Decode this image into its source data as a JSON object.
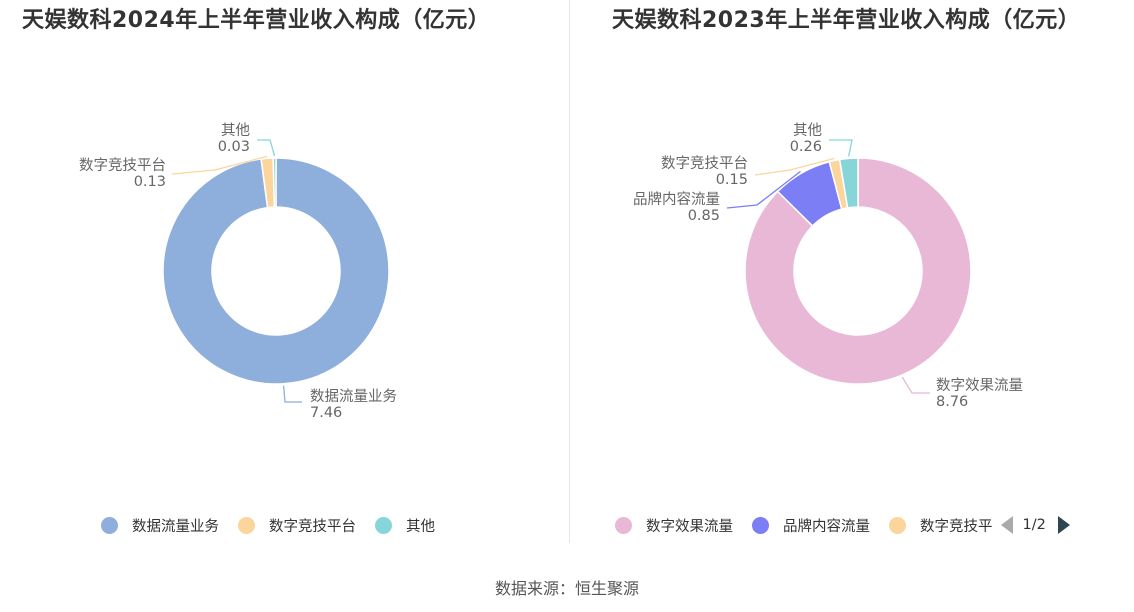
{
  "chart_data": [
    {
      "type": "pie",
      "title": "天娱数科2024年上半年营业收入构成（亿元）",
      "slices": [
        {
          "name": "数据流量业务",
          "value": 7.46,
          "value_label": "7.46",
          "color": "#8eaedb"
        },
        {
          "name": "数字竞技平台",
          "value": 0.13,
          "value_label": "0.13",
          "color": "#fcd59c"
        },
        {
          "name": "其他",
          "value": 0.03,
          "value_label": "0.03",
          "color": "#86d5d9"
        }
      ],
      "legend": [
        "数据流量业务",
        "数字竞技平台",
        "其他"
      ],
      "legend_placement": "bottom"
    },
    {
      "type": "pie",
      "title": "天娱数科2023年上半年营业收入构成（亿元）",
      "slices": [
        {
          "name": "数字效果流量",
          "value": 8.76,
          "value_label": "8.76",
          "color": "#e8b8d6"
        },
        {
          "name": "品牌内容流量",
          "value": 0.85,
          "value_label": "0.85",
          "color": "#7b7ef5"
        },
        {
          "name": "数字竞技平台",
          "value": 0.15,
          "value_label": "0.15",
          "color": "#fcd59c"
        },
        {
          "name": "其他",
          "value": 0.26,
          "value_label": "0.26",
          "color": "#86d5d9"
        }
      ],
      "legend": [
        "数字效果流量",
        "品牌内容流量",
        "数字竞技平"
      ],
      "legend_placement": "bottom",
      "legend_page": "1/2"
    }
  ],
  "source_text": "数据来源：恒生聚源"
}
